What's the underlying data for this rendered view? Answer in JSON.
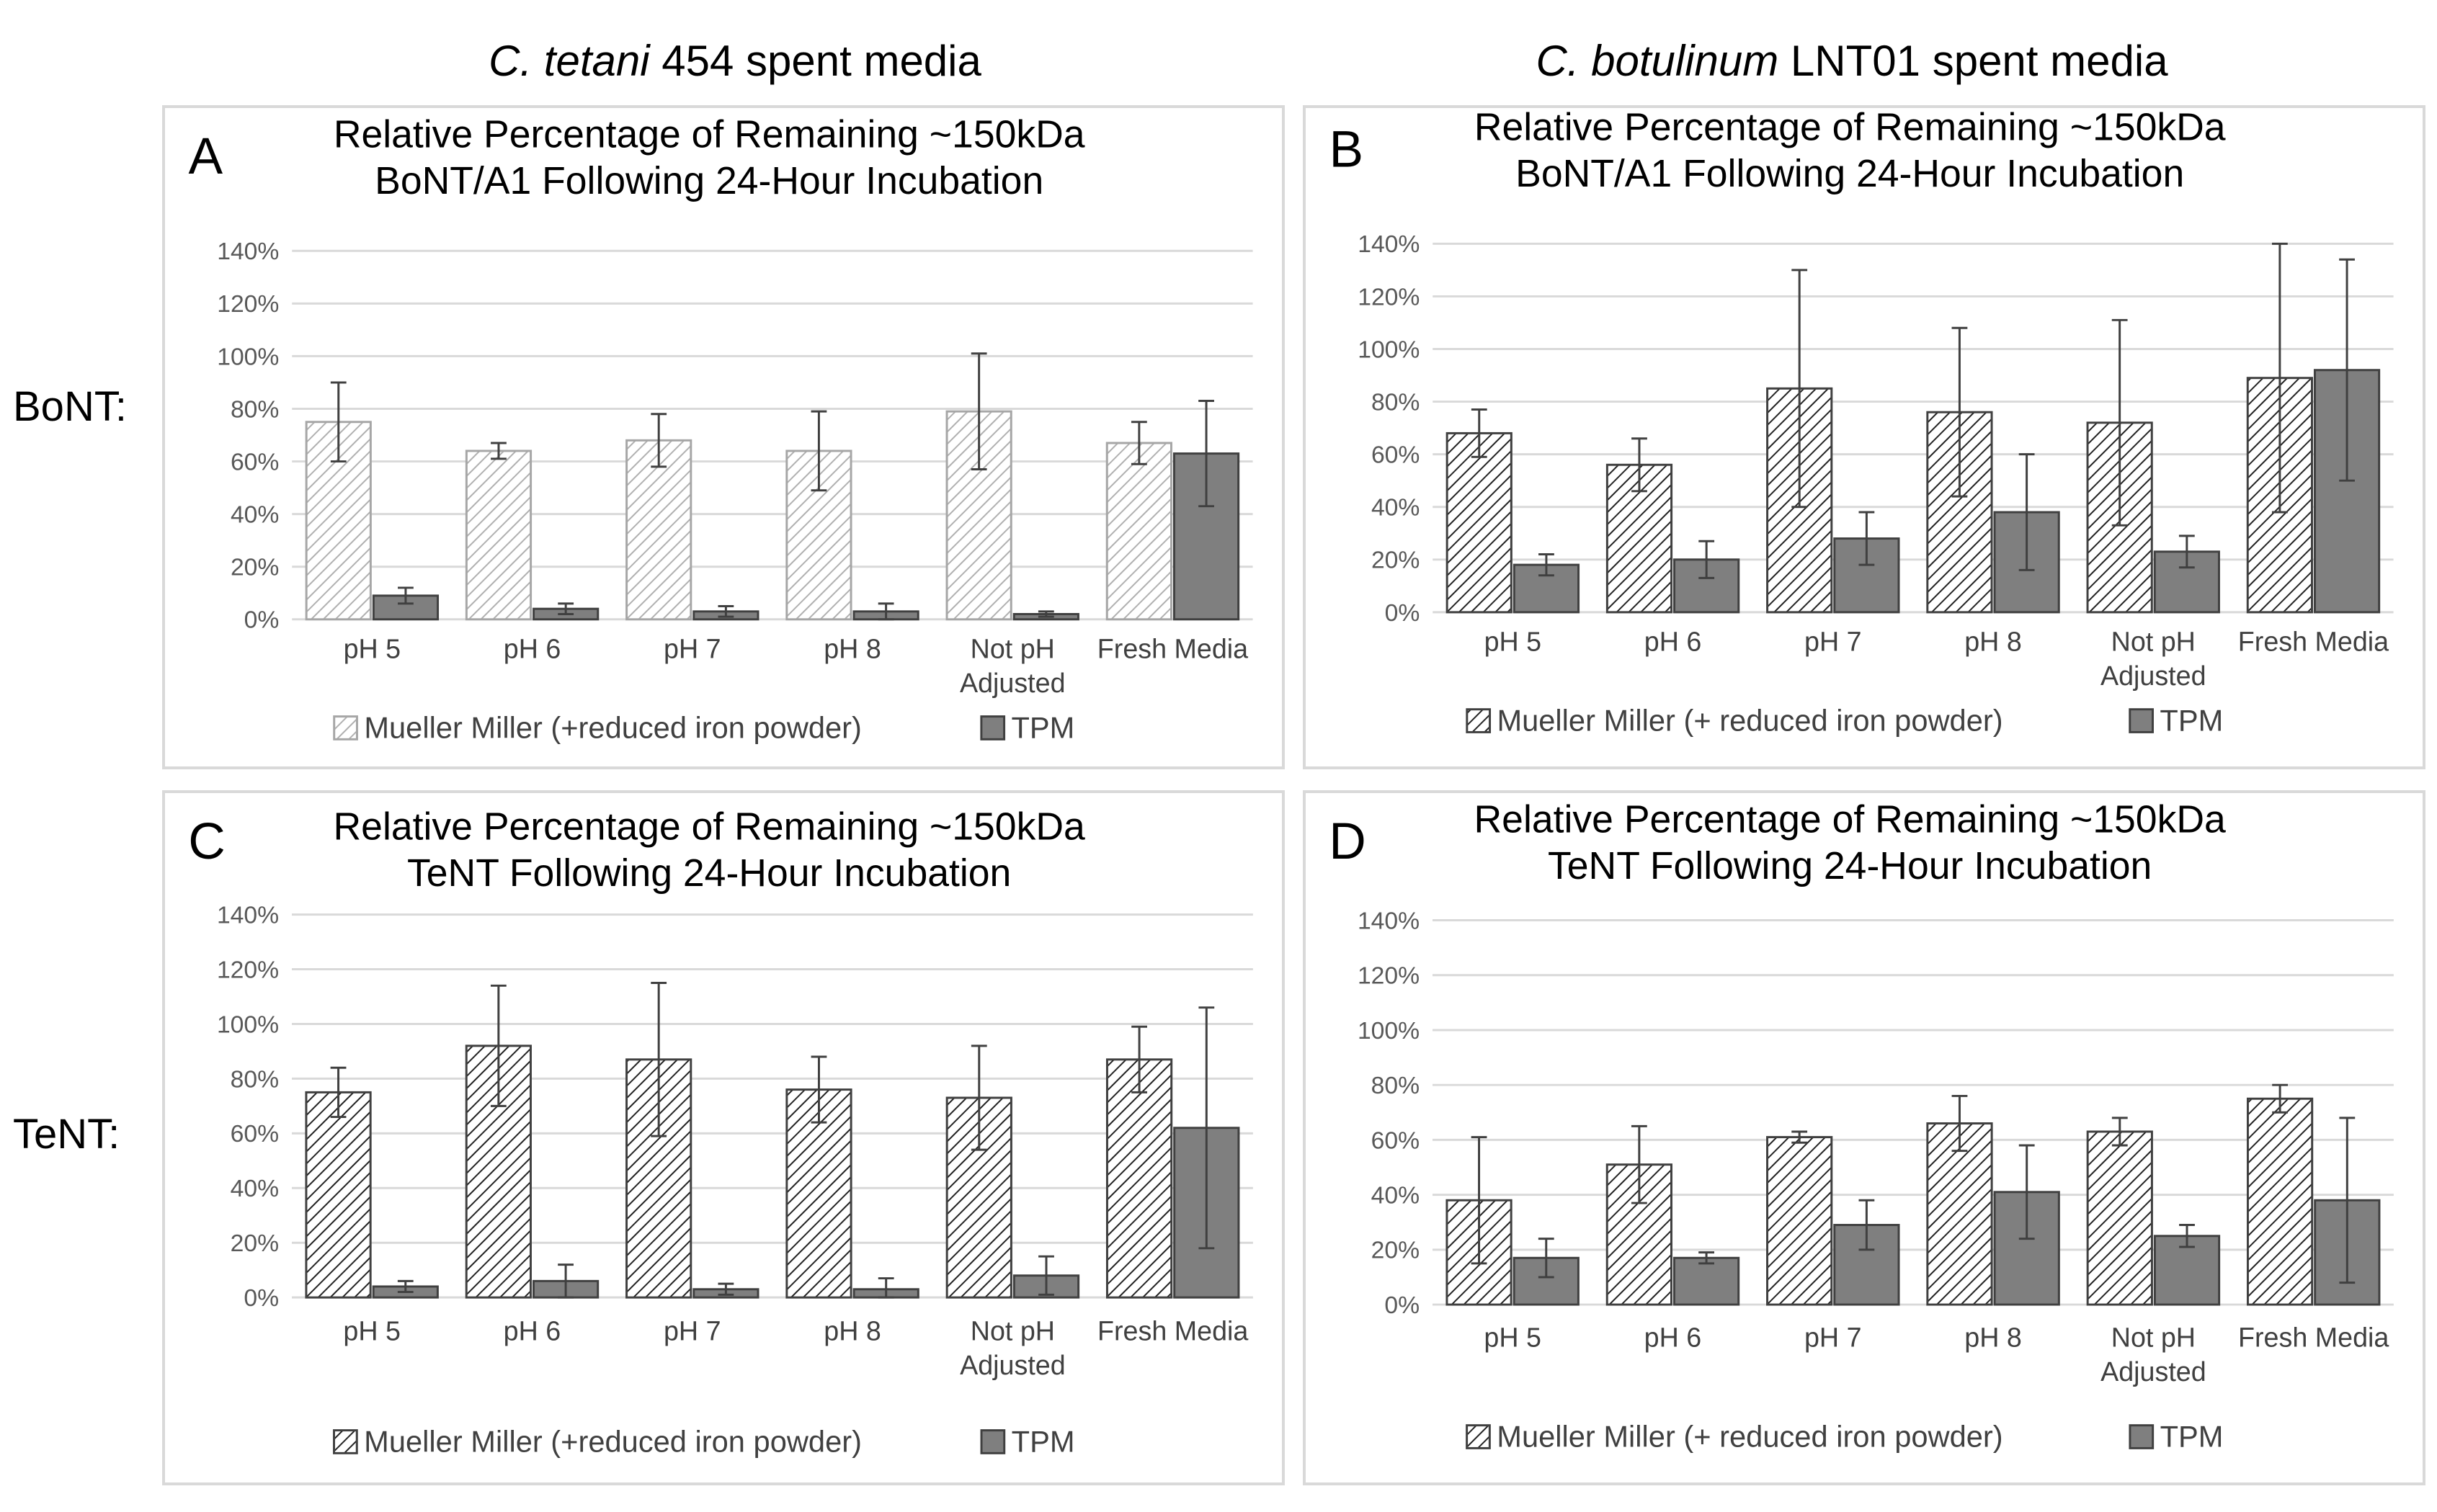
{
  "column_headers": [
    {
      "italic": "C. tetani",
      "rest": " 454 spent media"
    },
    {
      "italic": "C. botulinum",
      "rest": " LNT01 spent media"
    }
  ],
  "row_headers": [
    "BoNT:",
    "TeNT:"
  ],
  "colors": {
    "bar_dark": "#7f7f7f",
    "bar_light_edge": "#a6a6a6",
    "bar_dark_edge": "#404040",
    "grid": "#d9d9d9",
    "axis_text": "#595959"
  },
  "chart_data": [
    {
      "panel": "A",
      "type": "bar",
      "title": [
        "Relative Percentage of Remaining ~150kDa",
        "BoNT/A1 Following 24-Hour Incubation"
      ],
      "categories": [
        [
          "pH 5"
        ],
        [
          "pH 6"
        ],
        [
          "pH 7"
        ],
        [
          "pH 8"
        ],
        [
          "Not pH",
          "Adjusted"
        ],
        [
          "Fresh Media"
        ]
      ],
      "yticks": [
        "0%",
        "20%",
        "40%",
        "60%",
        "80%",
        "100%",
        "120%",
        "140%"
      ],
      "ylim": [
        0,
        140
      ],
      "legend": "bottom",
      "series": [
        {
          "name": "Mueller Miller (+reduced iron powder)",
          "pattern": "light-hatch",
          "values": [
            75,
            64,
            68,
            64,
            79,
            67
          ],
          "err": [
            15,
            3,
            10,
            15,
            22,
            8
          ]
        },
        {
          "name": "TPM",
          "pattern": "solid",
          "values": [
            9,
            4,
            3,
            3,
            2,
            63
          ],
          "err": [
            3,
            2,
            2,
            3,
            1,
            20
          ]
        }
      ]
    },
    {
      "panel": "B",
      "type": "bar",
      "title": [
        "Relative Percentage of Remaining ~150kDa",
        "BoNT/A1 Following 24-Hour Incubation"
      ],
      "categories": [
        [
          "pH 5"
        ],
        [
          "pH 6"
        ],
        [
          "pH 7"
        ],
        [
          "pH 8"
        ],
        [
          "Not pH",
          "Adjusted"
        ],
        [
          "Fresh Media"
        ]
      ],
      "yticks": [
        "0%",
        "20%",
        "40%",
        "60%",
        "80%",
        "100%",
        "120%",
        "140%"
      ],
      "ylim": [
        0,
        140
      ],
      "legend": "bottom",
      "series": [
        {
          "name": "Mueller Miller (+ reduced iron powder)",
          "pattern": "dark-hatch",
          "values": [
            68,
            56,
            85,
            76,
            72,
            89
          ],
          "err": [
            9,
            10,
            45,
            32,
            39,
            51
          ]
        },
        {
          "name": "TPM",
          "pattern": "solid",
          "values": [
            18,
            20,
            28,
            38,
            23,
            92
          ],
          "err": [
            4,
            7,
            10,
            22,
            6,
            42
          ]
        }
      ]
    },
    {
      "panel": "C",
      "type": "bar",
      "title": [
        "Relative Percentage of Remaining ~150kDa",
        "TeNT Following 24-Hour Incubation"
      ],
      "categories": [
        [
          "pH 5"
        ],
        [
          "pH 6"
        ],
        [
          "pH 7"
        ],
        [
          "pH 8"
        ],
        [
          "Not pH",
          "Adjusted"
        ],
        [
          "Fresh Media"
        ]
      ],
      "yticks": [
        "0%",
        "20%",
        "40%",
        "60%",
        "80%",
        "100%",
        "120%",
        "140%"
      ],
      "ylim": [
        0,
        140
      ],
      "legend": "bottom",
      "series": [
        {
          "name": "Mueller Miller (+reduced iron powder)",
          "pattern": "dark-hatch",
          "values": [
            75,
            92,
            87,
            76,
            73,
            87
          ],
          "err": [
            9,
            22,
            28,
            12,
            19,
            12
          ]
        },
        {
          "name": "TPM",
          "pattern": "solid",
          "values": [
            4,
            6,
            3,
            3,
            8,
            62
          ],
          "err": [
            2,
            6,
            2,
            4,
            7,
            44
          ]
        }
      ]
    },
    {
      "panel": "D",
      "type": "bar",
      "title": [
        "Relative Percentage of Remaining ~150kDa",
        "TeNT Following 24-Hour Incubation"
      ],
      "categories": [
        [
          "pH 5"
        ],
        [
          "pH 6"
        ],
        [
          "pH 7"
        ],
        [
          "pH 8"
        ],
        [
          "Not pH",
          "Adjusted"
        ],
        [
          "Fresh Media"
        ]
      ],
      "yticks": [
        "0%",
        "20%",
        "40%",
        "60%",
        "80%",
        "100%",
        "120%",
        "140%"
      ],
      "ylim": [
        0,
        140
      ],
      "legend": "bottom",
      "series": [
        {
          "name": "Mueller Miller (+ reduced iron powder)",
          "pattern": "dark-hatch",
          "values": [
            38,
            51,
            61,
            66,
            63,
            75
          ],
          "err": [
            23,
            14,
            2,
            10,
            5,
            5
          ]
        },
        {
          "name": "TPM",
          "pattern": "solid",
          "values": [
            17,
            17,
            29,
            41,
            25,
            38
          ],
          "err": [
            7,
            2,
            9,
            17,
            4,
            30
          ]
        }
      ]
    }
  ]
}
